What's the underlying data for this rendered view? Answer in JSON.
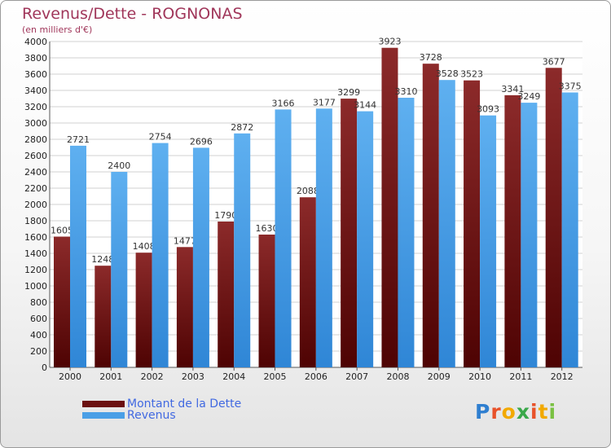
{
  "header": {
    "title": "Revenus/Dette - ROGNONAS",
    "subtitle": "(en milliers d'€)"
  },
  "colors": {
    "dette": "#6b1010",
    "revenus": "#4a9fe6",
    "title": "#a0365a",
    "legend_text": "#4169e1"
  },
  "chart_data": {
    "type": "bar",
    "title": "Revenus/Dette - ROGNONAS",
    "subtitle": "(en milliers d'€)",
    "categories": [
      "2000",
      "2001",
      "2002",
      "2003",
      "2004",
      "2005",
      "2006",
      "2007",
      "2008",
      "2009",
      "2010",
      "2011",
      "2012"
    ],
    "series": [
      {
        "name": "Montant de la Dette",
        "values": [
          1605,
          1248,
          1408,
          1477,
          1790,
          1630,
          2088,
          3299,
          3923,
          3728,
          3523,
          3341,
          3677
        ]
      },
      {
        "name": "Revenus",
        "values": [
          2721,
          2400,
          2754,
          2696,
          2872,
          3166,
          3177,
          3144,
          3310,
          3528,
          3093,
          3249,
          3375
        ]
      }
    ],
    "ylim": [
      0,
      4000
    ],
    "yticks": [
      0,
      200,
      400,
      600,
      800,
      1000,
      1200,
      1400,
      1600,
      1800,
      2000,
      2200,
      2400,
      2600,
      2800,
      3000,
      3200,
      3400,
      3600,
      3800,
      4000
    ],
    "grid": true,
    "legend": "bottom-left"
  },
  "legend": {
    "dette_label": "Montant de la Dette",
    "revenus_label": "Revenus"
  },
  "logo": {
    "letters": [
      "P",
      "r",
      "o",
      "x",
      "i",
      "t",
      "i"
    ],
    "colors": [
      "#2f7fd0",
      "#e8522a",
      "#f2a900",
      "#3aa84a",
      "#e8522a",
      "#f2a900",
      "#7ac143"
    ]
  }
}
